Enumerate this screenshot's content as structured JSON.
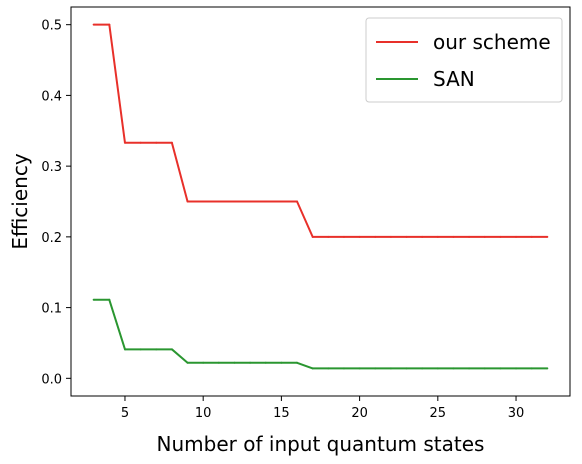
{
  "chart_data": {
    "type": "line",
    "title": "",
    "xlabel": "Number of input quantum states",
    "ylabel": "Efficiency",
    "xlim": [
      1.55,
      33.45
    ],
    "ylim": [
      -0.025,
      0.525
    ],
    "xticks": [
      5,
      10,
      15,
      20,
      25,
      30
    ],
    "yticks": [
      0.0,
      0.1,
      0.2,
      0.3,
      0.4,
      0.5
    ],
    "ytick_labels": [
      "0.0",
      "0.1",
      "0.2",
      "0.3",
      "0.4",
      "0.5"
    ],
    "grid": false,
    "legend_position": "top-right",
    "series": [
      {
        "name": "our scheme",
        "color": "#e8302a",
        "x": [
          3,
          4,
          5,
          6,
          7,
          8,
          9,
          10,
          11,
          12,
          13,
          14,
          15,
          16,
          17,
          18,
          19,
          20,
          21,
          22,
          23,
          24,
          25,
          26,
          27,
          28,
          29,
          30,
          31,
          32
        ],
        "y": [
          0.5,
          0.5,
          0.333,
          0.333,
          0.333,
          0.333,
          0.25,
          0.25,
          0.25,
          0.25,
          0.25,
          0.25,
          0.25,
          0.25,
          0.2,
          0.2,
          0.2,
          0.2,
          0.2,
          0.2,
          0.2,
          0.2,
          0.2,
          0.2,
          0.2,
          0.2,
          0.2,
          0.2,
          0.2,
          0.2
        ]
      },
      {
        "name": "SAN",
        "color": "#2a9630",
        "x": [
          3,
          4,
          5,
          6,
          7,
          8,
          9,
          10,
          11,
          12,
          13,
          14,
          15,
          16,
          17,
          18,
          19,
          20,
          21,
          22,
          23,
          24,
          25,
          26,
          27,
          28,
          29,
          30,
          31,
          32
        ],
        "y": [
          0.111,
          0.111,
          0.041,
          0.041,
          0.041,
          0.041,
          0.022,
          0.022,
          0.022,
          0.022,
          0.022,
          0.022,
          0.022,
          0.022,
          0.014,
          0.014,
          0.014,
          0.014,
          0.014,
          0.014,
          0.014,
          0.014,
          0.014,
          0.014,
          0.014,
          0.014,
          0.014,
          0.014,
          0.014,
          0.014
        ]
      }
    ]
  }
}
